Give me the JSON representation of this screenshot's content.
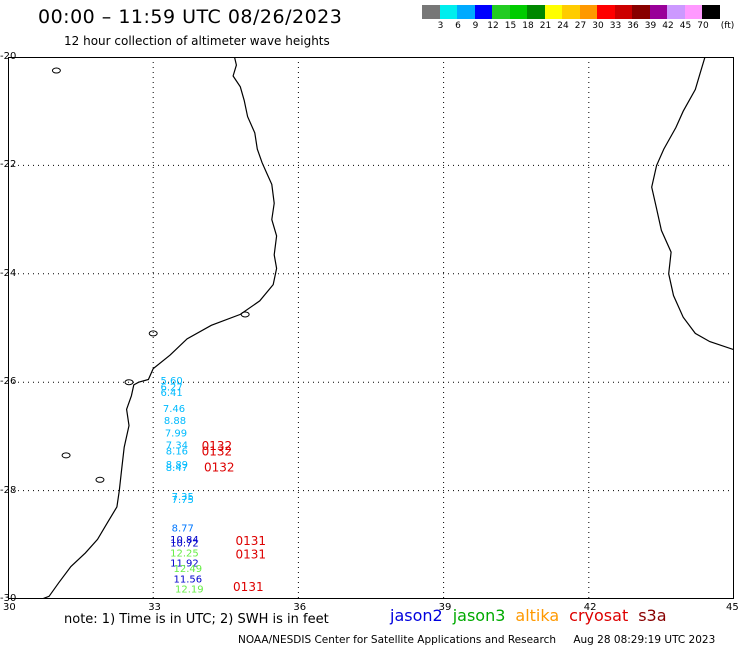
{
  "header": {
    "title": "00:00 – 11:59 UTC 08/26/2023",
    "subtitle": "12 hour collection of altimeter wave heights"
  },
  "colorbar": {
    "colors": [
      "#777777",
      "#00eeee",
      "#00aaff",
      "#0000ff",
      "#22cc22",
      "#00cc00",
      "#008800",
      "#ffff00",
      "#ffcc00",
      "#ff9900",
      "#ff0000",
      "#cc0000",
      "#880000",
      "#990099",
      "#cc99ff",
      "#ff99ff",
      "#000000"
    ],
    "labels": [
      "3",
      "6",
      "9",
      "12",
      "15",
      "18",
      "21",
      "24",
      "27",
      "30",
      "33",
      "36",
      "39",
      "42",
      "45",
      "70",
      "(ft)"
    ]
  },
  "axes": {
    "lat_labels": [
      "-20",
      "-22",
      "-24",
      "-26",
      "-28",
      "-30"
    ],
    "lon_labels": [
      "30",
      "33",
      "36",
      "39",
      "42",
      "45"
    ]
  },
  "map": {
    "lon_range": [
      30,
      45
    ],
    "lat_range": [
      -30,
      -20
    ],
    "colors": {
      "line": "#000000",
      "grid": "#000000"
    }
  },
  "observations": [
    {
      "lon": 33.15,
      "lat": -26.03,
      "value": "5.60",
      "color": "#00bbff"
    },
    {
      "lon": 33.15,
      "lat": -26.15,
      "value": "6.27",
      "color": "#00bbff"
    },
    {
      "lon": 33.15,
      "lat": -26.25,
      "value": "6.41",
      "color": "#00bbff"
    },
    {
      "lon": 33.2,
      "lat": -26.55,
      "value": "7.46",
      "color": "#00bbff"
    },
    {
      "lon": 33.22,
      "lat": -26.77,
      "value": "8.88",
      "color": "#00bbff"
    },
    {
      "lon": 33.24,
      "lat": -27.0,
      "value": "7.99",
      "color": "#00bbff"
    },
    {
      "lon": 33.26,
      "lat": -27.22,
      "value": "7.34",
      "color": "#00bbff"
    },
    {
      "lon": 33.26,
      "lat": -27.33,
      "value": "8.16",
      "color": "#00bbff"
    },
    {
      "lon": 33.26,
      "lat": -27.58,
      "value": "8.89",
      "color": "#00bbff"
    },
    {
      "lon": 33.26,
      "lat": -27.64,
      "value": "8.47",
      "color": "#00bbff"
    },
    {
      "lon": 33.38,
      "lat": -28.17,
      "value": "7.35",
      "color": "#00bbff"
    },
    {
      "lon": 33.38,
      "lat": -28.23,
      "value": "7.75",
      "color": "#00bbff"
    },
    {
      "lon": 33.38,
      "lat": -28.75,
      "value": "8.77",
      "color": "#0077ff"
    },
    {
      "lon": 33.35,
      "lat": -28.97,
      "value": "10.84",
      "color": "#0000cc"
    },
    {
      "lon": 33.35,
      "lat": -29.03,
      "value": "10.72",
      "color": "#0000cc"
    },
    {
      "lon": 33.35,
      "lat": -29.22,
      "value": "12.25",
      "color": "#66ee44"
    },
    {
      "lon": 33.35,
      "lat": -29.4,
      "value": "11.92",
      "color": "#0000cc"
    },
    {
      "lon": 33.42,
      "lat": -29.5,
      "value": "12.49",
      "color": "#66ee44"
    },
    {
      "lon": 33.42,
      "lat": -29.7,
      "value": "11.56",
      "color": "#0000cc"
    },
    {
      "lon": 33.45,
      "lat": -29.88,
      "value": "12.19",
      "color": "#66ee44"
    }
  ],
  "time_labels": [
    {
      "lon": 34.0,
      "lat": -27.25,
      "value": "0132"
    },
    {
      "lon": 34.0,
      "lat": -27.35,
      "value": "0132"
    },
    {
      "lon": 34.05,
      "lat": -27.65,
      "value": "0132"
    },
    {
      "lon": 34.7,
      "lat": -29.0,
      "value": "0131"
    },
    {
      "lon": 34.7,
      "lat": -29.25,
      "value": "0131"
    },
    {
      "lon": 34.65,
      "lat": -29.85,
      "value": "0131"
    }
  ],
  "footer": {
    "note": "note:  1) Time is in UTC;  2) SWH is in feet",
    "satellites": [
      {
        "name": "jason2",
        "color": "#0000dd"
      },
      {
        "name": "jason3",
        "color": "#00aa00"
      },
      {
        "name": "altika",
        "color": "#ff9900"
      },
      {
        "name": "cryosat",
        "color": "#dd0000"
      },
      {
        "name": "s3a",
        "color": "#880000"
      }
    ],
    "credit": "NOAA/NESDIS Center for Satellite Applications and Research",
    "timestamp": "Aug 28 08:29:19 UTC 2023"
  }
}
